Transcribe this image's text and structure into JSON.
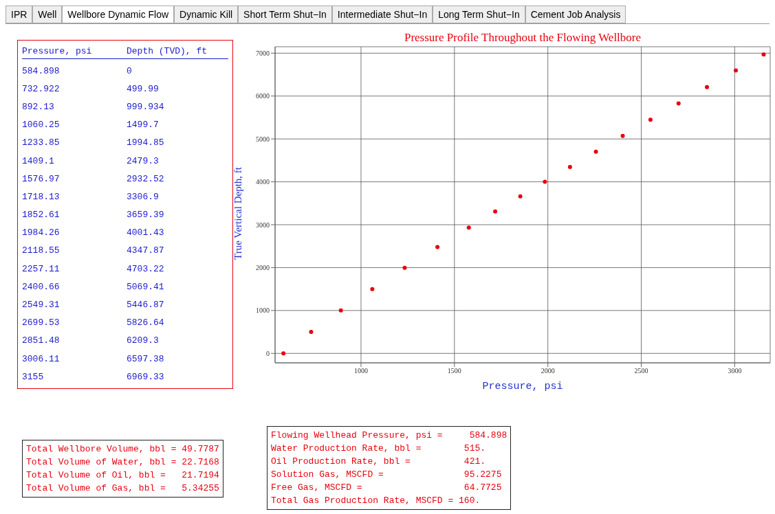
{
  "chart_data": [
    {
      "type": "other",
      "annotations": [
        "Pressure, psi",
        "Depth (TVD), ft",
        "584.898",
        "0",
        "732.922",
        "499.99",
        "892.13",
        "999.934",
        "1060.25",
        "1499.7",
        "1233.85",
        "1994.85",
        "1409.1",
        "2479.3",
        "1576.97",
        "2932.52",
        "1718.13",
        "3306.9",
        "1852.61",
        "3659.39",
        "1984.26",
        "4001.43",
        "2118.55",
        "4347.87",
        "2257.11",
        "4703.22",
        "2400.66",
        "5069.41",
        "2549.31",
        "5446.87",
        "2699.53",
        "5826.64",
        "2851.48",
        "6209.3",
        "3006.11",
        "6597.38",
        "3155",
        "6969.33"
      ]
    },
    {
      "type": "scatter",
      "title": "Pressure Profile Throughout the Flowing Wellbore",
      "xlabel": "Pressure, psi",
      "ylabel": "True Vertical Depth, ft",
      "x": [
        584.898,
        732.922,
        892.13,
        1060.25,
        1233.85,
        1409.1,
        1576.97,
        1718.13,
        1852.61,
        1984.26,
        2118.55,
        2257.11,
        2400.66,
        2549.31,
        2699.53,
        2851.48,
        3006.11,
        3155
      ],
      "values": [
        0,
        499.99,
        999.934,
        1499.7,
        1994.85,
        2479.3,
        2932.52,
        3306.9,
        3659.39,
        4001.43,
        4347.87,
        4703.22,
        5069.41,
        5446.87,
        5826.64,
        6209.3,
        6597.38,
        6969.33
      ],
      "color": "#e8000f",
      "marker": "circle",
      "grid": true,
      "xlim": [
        540,
        3190
      ],
      "ylim": [
        -220,
        7150
      ],
      "xticks": [
        1000,
        1500,
        2000,
        2500,
        3000
      ],
      "yticks": [
        0,
        1000,
        2000,
        3000,
        4000,
        5000,
        6000,
        7000
      ],
      "annotations": [
        "IPR",
        "Well",
        "Wellbore Dynamic Flow",
        "Dynamic Kill",
        "Short Term Shut−In",
        "Intermediate Shut−In",
        "Long Term Shut−In",
        "Cement Job Analysis",
        "Total Wellbore Volume, bbl = 49.7787",
        "Total Volume of Water, bbl = 22.7168",
        "Total Volume of Oil, bbl =   21.7194",
        "Total Volume of Gas, bbl =   5.34255",
        "Flowing Wellhead Pressure, psi =     584.898",
        "Water Production Rate, bbl =        515.",
        "Oil Production Rate, bbl =          421.",
        "Solution Gas, MSCFD =               95.2275",
        "Free Gas, MSCFD =                   64.7725",
        "Total Gas Production Rate, MSCFD = 160."
      ]
    }
  ]
}
